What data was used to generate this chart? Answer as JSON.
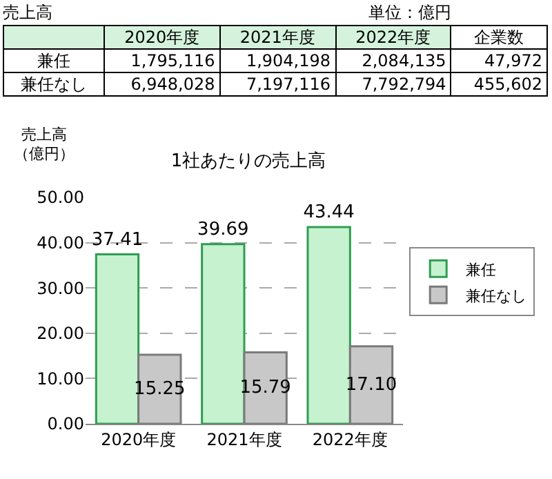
{
  "chart_data": [
    {
      "type": "other",
      "title": "売上高",
      "annotations": [
        "単位：億円"
      ],
      "categories": [
        "2020年度",
        "2021年度",
        "2022年度",
        "企業数"
      ],
      "y_categories": [
        "兼任",
        "兼任なし"
      ],
      "cell_labels": [
        [
          "1,795,116",
          "1,904,198",
          "2,084,135",
          "47,972"
        ],
        [
          "6,948,028",
          "7,197,116",
          "7,792,794",
          "455,602"
        ]
      ]
    },
    {
      "type": "bar",
      "title": "1社あたりの売上高",
      "ylabel": "売上高（億円）",
      "categories": [
        "2020年度",
        "2021年度",
        "2022年度"
      ],
      "series": [
        {
          "name": "兼任",
          "color": "#c6f2d0",
          "values": [
            37.41,
            39.69,
            43.44
          ],
          "value_labels": [
            "37.41",
            "39.69",
            "43.44"
          ]
        },
        {
          "name": "兼任なし",
          "color": "#c8c8c8",
          "values": [
            15.25,
            15.79,
            17.1
          ],
          "value_labels": [
            "15.25",
            "15.79",
            "17.10"
          ]
        }
      ],
      "ylim": [
        0,
        50
      ],
      "yticks": [
        {
          "value": 0,
          "label": "0.00"
        },
        {
          "value": 10,
          "label": "10.00"
        },
        {
          "value": 20,
          "label": "20.00"
        },
        {
          "value": 30,
          "label": "30.00"
        },
        {
          "value": 40,
          "label": "40.00"
        },
        {
          "value": 50,
          "label": "50.00"
        }
      ],
      "grid": "y",
      "legend": "right"
    }
  ]
}
